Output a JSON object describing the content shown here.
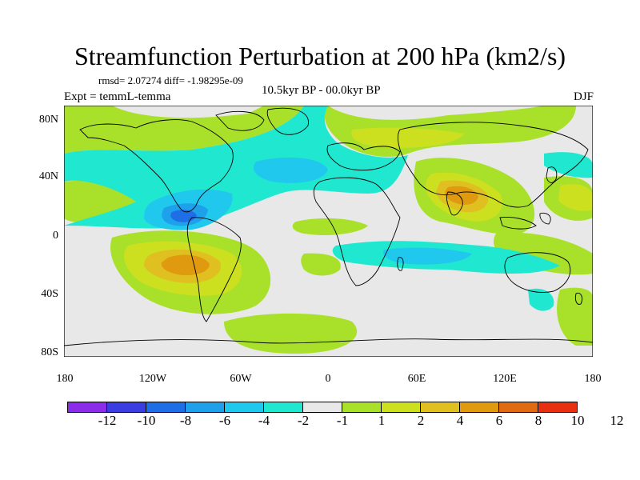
{
  "header": {
    "title": "Streamfunction Perturbation at 200 hPa (km2/s)",
    "stats": "rmsd= 2.07274 diff= -1.98295e-09",
    "experiment": "Expt = temmL-temma",
    "period": "10.5kyr BP - 00.0kyr BP",
    "season": "DJF"
  },
  "axes": {
    "y_ticks": [
      "80N",
      "40N",
      "0",
      "40S",
      "80S"
    ],
    "x_ticks": [
      "180",
      "120W",
      "60W",
      "0",
      "60E",
      "120E",
      "180"
    ]
  },
  "colorbar": {
    "colors": [
      "#8b2ce8",
      "#3a3ee0",
      "#1e6ee6",
      "#1ea0ea",
      "#20c8ee",
      "#20e8d0",
      "#e8e8e8",
      "#a8e02a",
      "#cce020",
      "#e0c020",
      "#e09a10",
      "#e06a10",
      "#e83010"
    ],
    "labels": [
      "-12",
      "-10",
      "-8",
      "-6",
      "-4",
      "-2",
      "-1",
      "1",
      "2",
      "4",
      "6",
      "8",
      "10",
      "12"
    ]
  },
  "map": {
    "background_color": "#e8e8e8",
    "coastline_color": "#000000"
  }
}
